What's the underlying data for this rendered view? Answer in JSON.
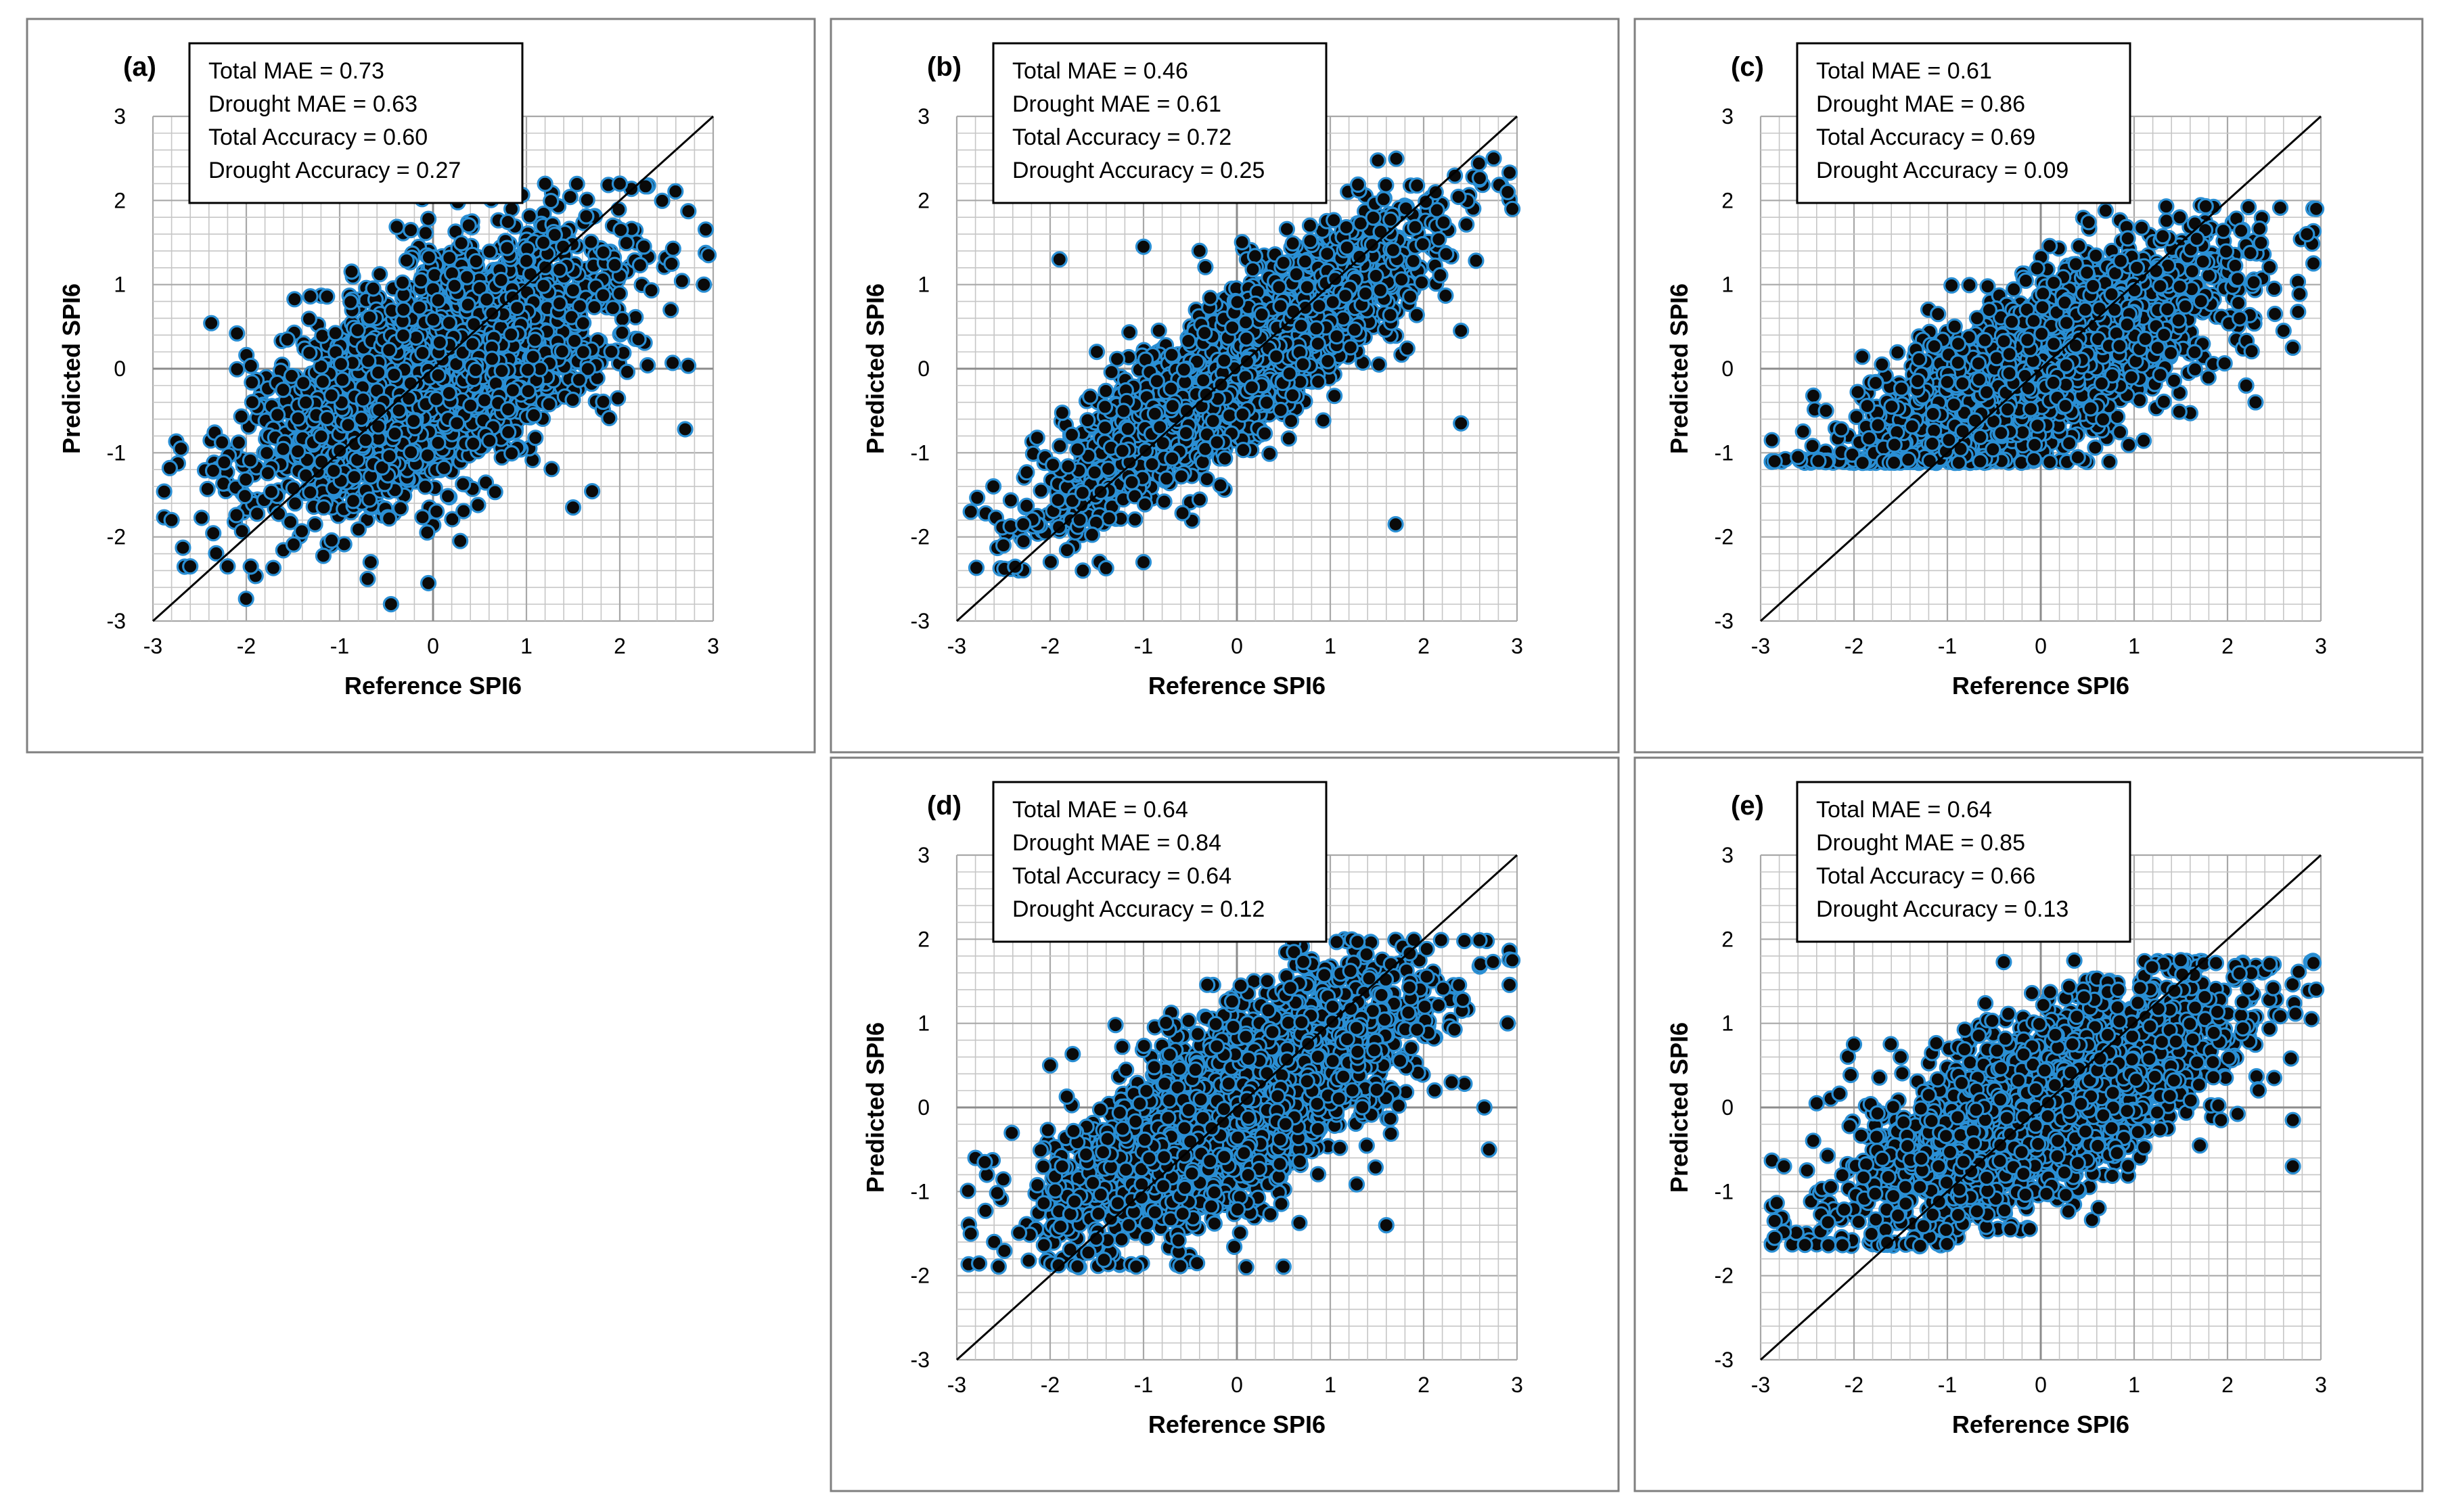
{
  "colors": {
    "marker_fill": "#0a0a0a",
    "marker_edge": "#2a8fd4",
    "grid": "#c6c6c6",
    "axis": "#8c8c8c",
    "frame": "#7f7f7f",
    "identity_line": "#000000",
    "text": "#000000"
  },
  "chart_data": [
    {
      "panel": "(a)",
      "type": "scatter",
      "xlabel": "Reference SPI6",
      "ylabel": "Predicted SPI6",
      "xlim": [
        -3,
        3
      ],
      "ylim": [
        -3,
        3
      ],
      "xticks": [
        "-3",
        "-2",
        "-1",
        "0",
        "1",
        "2",
        "3"
      ],
      "yticks": [
        "-3",
        "-2",
        "-1",
        "0",
        "1",
        "2",
        "3"
      ],
      "grid": true,
      "reference_line": "1:1",
      "stats": [
        "Total MAE = 0.73",
        "Drought MAE = 0.63",
        "Total Accuracy = 0.60",
        "Drought Accuracy = 0.27"
      ],
      "distribution": {
        "slope": 0.5,
        "intercept": -0.05,
        "noise": 0.72,
        "y_floor": -2.8,
        "y_ceiling": 2.2,
        "n": 2600
      },
      "points": [
        [
          -2.8,
          -1.8
        ],
        [
          -2.7,
          -0.95
        ],
        [
          -2.6,
          -2.35
        ],
        [
          -2.1,
          0.42
        ],
        [
          2.0,
          2.2
        ],
        [
          2.95,
          1.35
        ],
        [
          2.7,
          -0.72
        ],
        [
          -0.45,
          -2.8
        ],
        [
          -0.05,
          -2.55
        ],
        [
          2.2,
          0.35
        ],
        [
          -2.2,
          -2.35
        ],
        [
          -0.7,
          -2.5
        ],
        [
          2.9,
          1.0
        ],
        [
          1.5,
          -1.65
        ]
      ]
    },
    {
      "panel": "(b)",
      "type": "scatter",
      "xlabel": "Reference SPI6",
      "ylabel": "Predicted SPI6",
      "xlim": [
        -3,
        3
      ],
      "ylim": [
        -3,
        3
      ],
      "xticks": [
        "-3",
        "-2",
        "-1",
        "0",
        "1",
        "2",
        "3"
      ],
      "yticks": [
        "-3",
        "-2",
        "-1",
        "0",
        "1",
        "2",
        "3"
      ],
      "grid": true,
      "reference_line": "1:1",
      "stats": [
        "Total MAE = 0.46",
        "Drought MAE = 0.61",
        "Total Accuracy = 0.72",
        "Drought Accuracy = 0.25"
      ],
      "distribution": {
        "slope": 0.78,
        "intercept": 0.0,
        "noise": 0.48,
        "y_floor": -2.4,
        "y_ceiling": 2.5,
        "n": 2600
      },
      "points": [
        [
          -2.85,
          -1.7
        ],
        [
          -2.5,
          -2.1
        ],
        [
          -1.9,
          1.3
        ],
        [
          -1.5,
          0.2
        ],
        [
          -1.0,
          1.45
        ],
        [
          -0.4,
          1.4
        ],
        [
          1.7,
          -1.85
        ],
        [
          2.4,
          -0.65
        ],
        [
          2.4,
          0.45
        ],
        [
          2.9,
          2.1
        ],
        [
          2.95,
          1.9
        ],
        [
          2.75,
          2.5
        ],
        [
          -1.65,
          -2.4
        ],
        [
          -1.0,
          -2.3
        ]
      ]
    },
    {
      "panel": "(c)",
      "type": "scatter",
      "xlabel": "Reference SPI6",
      "ylabel": "Predicted SPI6",
      "xlim": [
        -3,
        3
      ],
      "ylim": [
        -3,
        3
      ],
      "xticks": [
        "-3",
        "-2",
        "-1",
        "0",
        "1",
        "2",
        "3"
      ],
      "yticks": [
        "-3",
        "-2",
        "-1",
        "0",
        "1",
        "2",
        "3"
      ],
      "grid": true,
      "reference_line": "1:1",
      "stats": [
        "Total MAE = 0.61",
        "Drought MAE = 0.86",
        "Total Accuracy = 0.69",
        "Drought Accuracy = 0.09"
      ],
      "distribution": {
        "slope": 0.55,
        "intercept": 0.0,
        "noise": 0.55,
        "y_floor": -1.12,
        "y_ceiling": 1.95,
        "n": 2600
      },
      "points": [
        [
          -2.85,
          -1.1
        ],
        [
          -2.6,
          -1.05
        ],
        [
          -2.3,
          -0.5
        ],
        [
          -1.7,
          0.05
        ],
        [
          -1.1,
          0.65
        ],
        [
          2.3,
          -0.4
        ],
        [
          2.6,
          0.45
        ],
        [
          2.7,
          0.25
        ],
        [
          2.95,
          1.9
        ],
        [
          2.85,
          1.6
        ],
        [
          2.5,
          0.95
        ],
        [
          2.2,
          -0.2
        ]
      ]
    },
    {
      "panel": "(d)",
      "type": "scatter",
      "xlabel": "Reference SPI6",
      "ylabel": "Predicted SPI6",
      "xlim": [
        -3,
        3
      ],
      "ylim": [
        -3,
        3
      ],
      "xticks": [
        "-3",
        "-2",
        "-1",
        "0",
        "1",
        "2",
        "3"
      ],
      "yticks": [
        "-3",
        "-2",
        "-1",
        "0",
        "1",
        "2",
        "3"
      ],
      "grid": true,
      "reference_line": "1:1",
      "stats": [
        "Total MAE = 0.64",
        "Drought MAE = 0.84",
        "Total Accuracy = 0.64",
        "Drought Accuracy = 0.12"
      ],
      "distribution": {
        "slope": 0.58,
        "intercept": 0.0,
        "noise": 0.62,
        "y_floor": -1.9,
        "y_ceiling": 2.0,
        "n": 2600
      },
      "points": [
        [
          -2.85,
          -1.5
        ],
        [
          -2.8,
          -0.6
        ],
        [
          -2.7,
          -0.65
        ],
        [
          -2.0,
          0.5
        ],
        [
          -1.3,
          0.98
        ],
        [
          2.95,
          1.75
        ],
        [
          2.9,
          1.0
        ],
        [
          2.7,
          -0.5
        ],
        [
          2.65,
          0.0
        ],
        [
          1.6,
          -1.4
        ],
        [
          2.3,
          0.3
        ],
        [
          0.1,
          -1.9
        ]
      ]
    },
    {
      "panel": "(e)",
      "type": "scatter",
      "xlabel": "Reference SPI6",
      "ylabel": "Predicted SPI6",
      "xlim": [
        -3,
        3
      ],
      "ylim": [
        -3,
        3
      ],
      "xticks": [
        "-3",
        "-2",
        "-1",
        "0",
        "1",
        "2",
        "3"
      ],
      "yticks": [
        "-3",
        "-2",
        "-1",
        "0",
        "1",
        "2",
        "3"
      ],
      "grid": true,
      "reference_line": "1:1",
      "stats": [
        "Total MAE = 0.64",
        "Drought MAE = 0.85",
        "Total Accuracy = 0.66",
        "Drought Accuracy = 0.13"
      ],
      "distribution": {
        "slope": 0.5,
        "intercept": 0.0,
        "noise": 0.58,
        "y_floor": -1.65,
        "y_ceiling": 1.75,
        "n": 2600
      },
      "points": [
        [
          -2.85,
          -1.55
        ],
        [
          -2.85,
          -1.35
        ],
        [
          -2.75,
          -0.7
        ],
        [
          -2.4,
          0.05
        ],
        [
          -2.0,
          0.75
        ],
        [
          -1.5,
          0.6
        ],
        [
          2.7,
          -0.7
        ],
        [
          2.7,
          -0.15
        ],
        [
          2.95,
          1.4
        ],
        [
          2.9,
          1.05
        ],
        [
          1.5,
          1.75
        ],
        [
          2.5,
          0.35
        ]
      ]
    }
  ]
}
